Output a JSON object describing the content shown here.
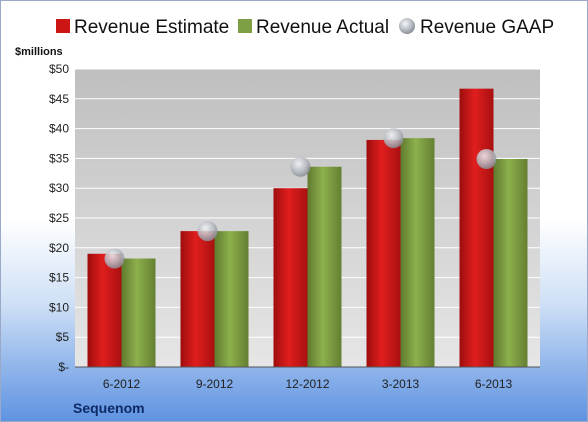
{
  "chart_data": {
    "type": "bar",
    "units_label": "$millions",
    "company": "Sequenom",
    "categories": [
      "6-2012",
      "9-2012",
      "12-2012",
      "3-2013",
      "6-2013"
    ],
    "series": [
      {
        "name": "Revenue Estimate",
        "kind": "bar",
        "color": "#cc1515",
        "values": [
          19.0,
          22.8,
          30.0,
          38.1,
          46.7
        ]
      },
      {
        "name": "Revenue Actual",
        "kind": "bar",
        "color": "#7f9f45",
        "values": [
          18.2,
          22.8,
          33.6,
          38.4,
          34.9
        ]
      },
      {
        "name": "Revenue GAAP",
        "kind": "marker",
        "color": "#b8bcc4",
        "values": [
          18.2,
          22.8,
          33.6,
          38.4,
          34.9
        ]
      }
    ],
    "yticks": [
      0,
      5,
      10,
      15,
      20,
      25,
      30,
      35,
      40,
      45,
      50
    ],
    "ytick_labels": [
      "$-",
      "$5",
      "$10",
      "$15",
      "$20",
      "$25",
      "$30",
      "$35",
      "$40",
      "$45",
      "$50"
    ],
    "ylim": [
      0,
      50
    ],
    "grid": true,
    "legend_position": "top"
  }
}
